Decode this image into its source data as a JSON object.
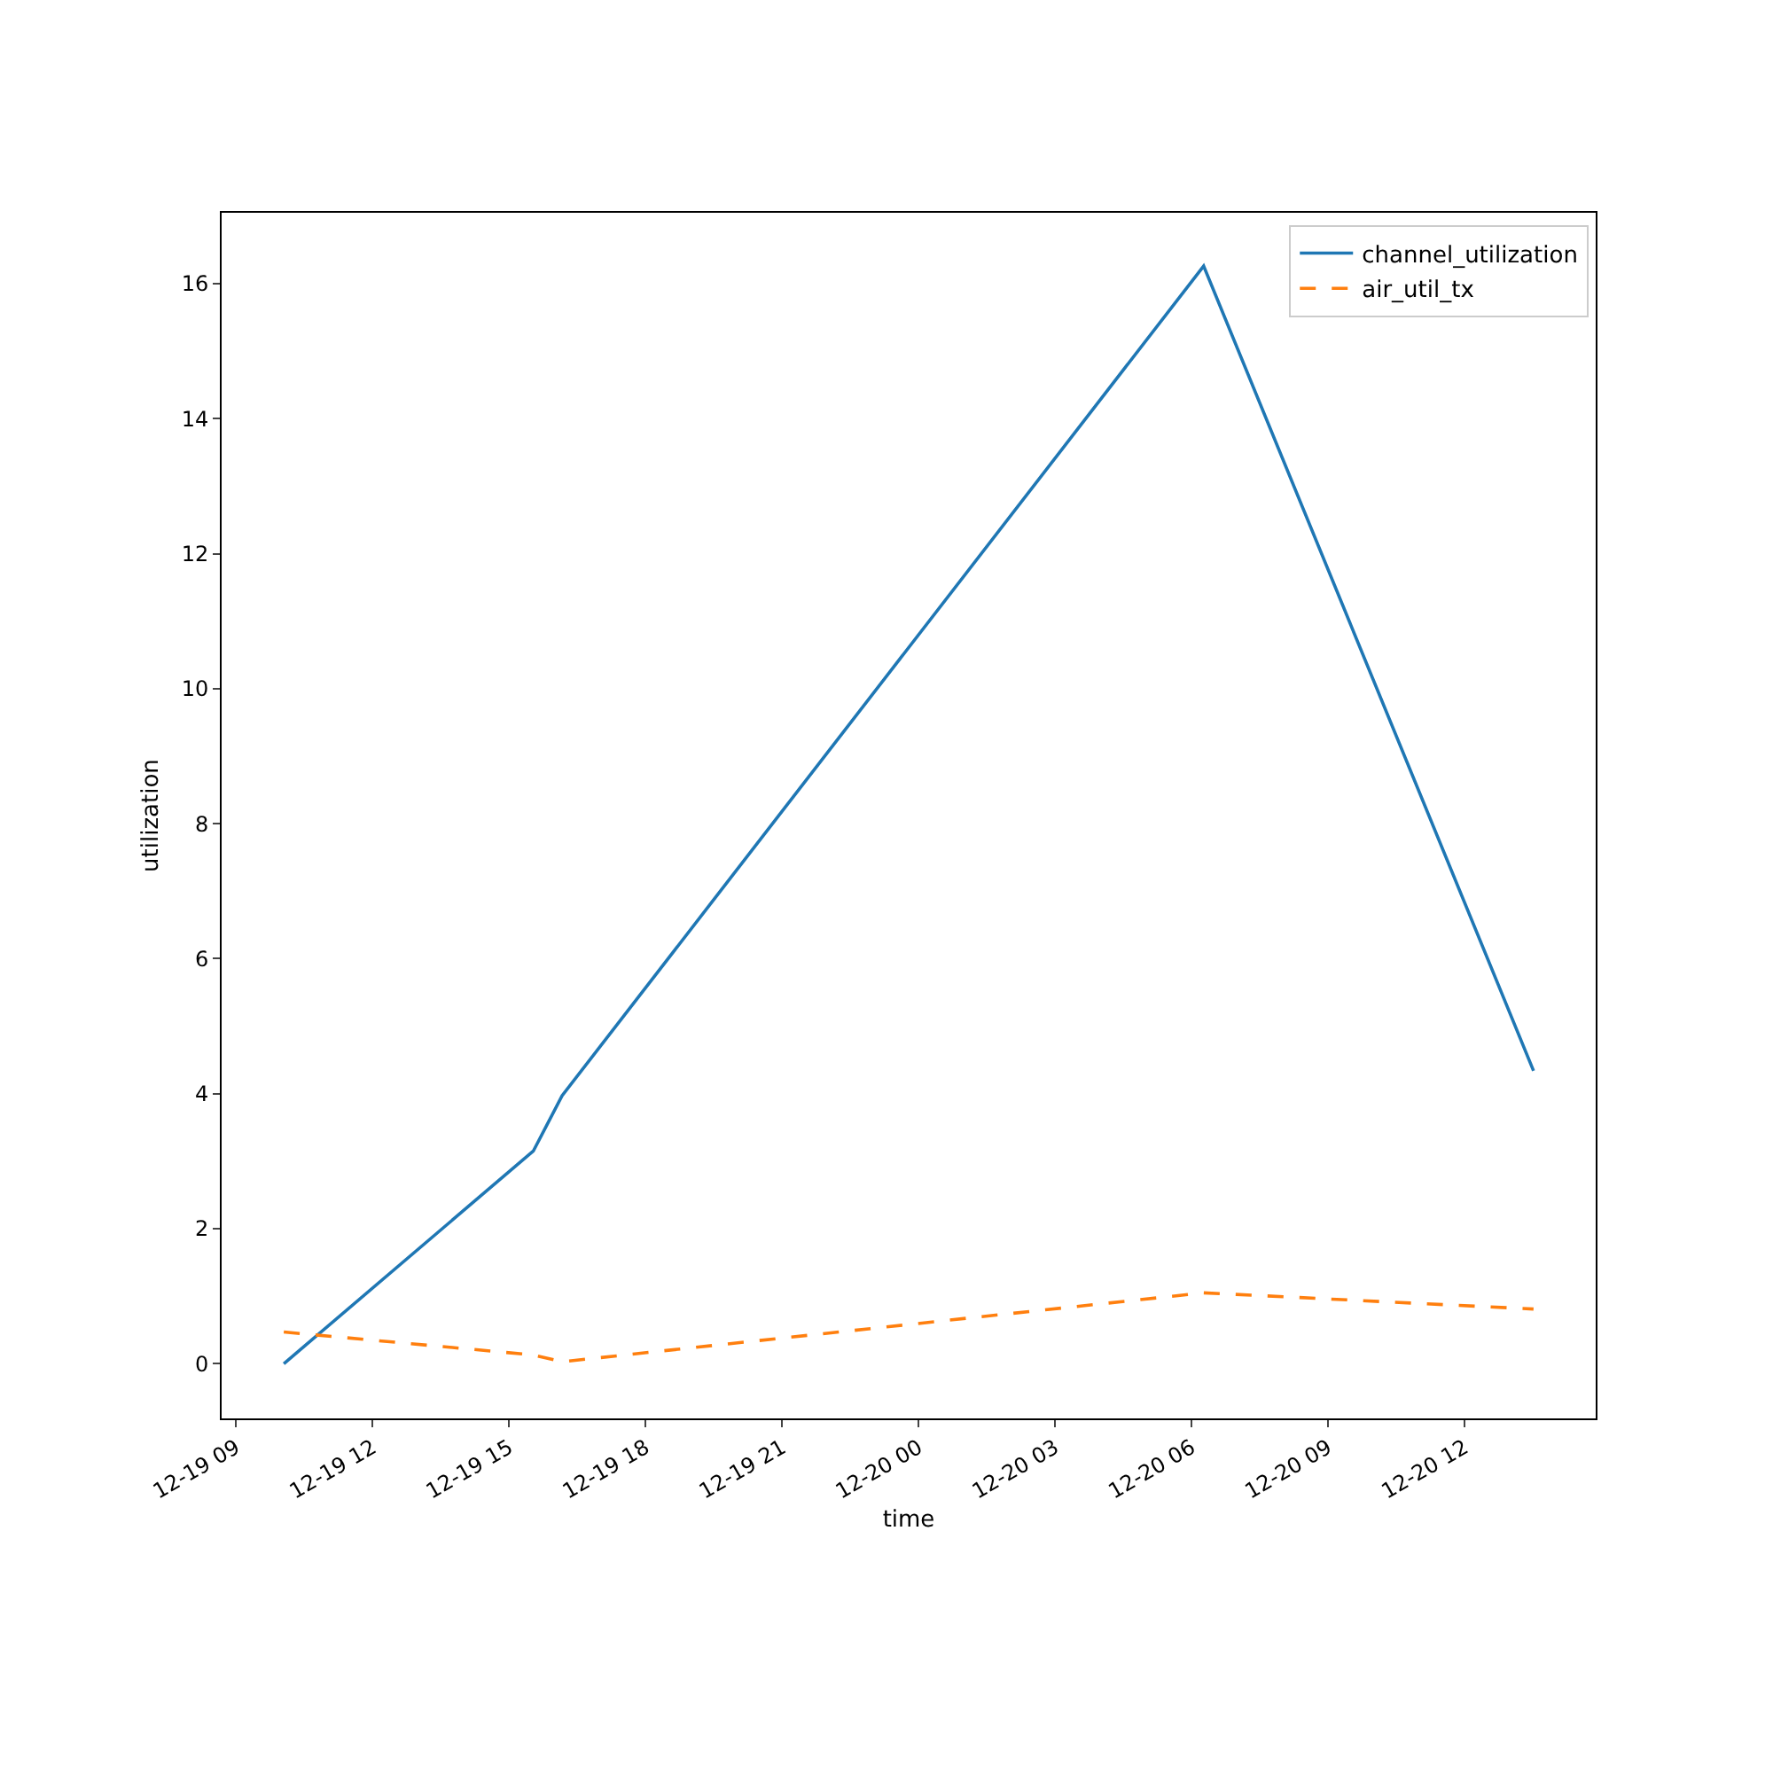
{
  "chart_data": {
    "type": "line",
    "xlabel": "time",
    "ylabel": "utilization",
    "x": [
      "--12-19T10:03",
      "--12-19T15:32",
      "--12-19T16:10",
      "--12-20T06:16",
      "--12-20T13:31"
    ],
    "series": [
      {
        "name": "channel_utilization",
        "color": "#1f77b4",
        "line_style": "solid",
        "values": [
          0,
          3.15,
          3.97,
          16.26,
          4.34
        ]
      },
      {
        "name": "air_util_tx",
        "color": "#ff7f0e",
        "line_style": "dashed",
        "values": [
          0.47,
          0.13,
          0.03,
          1.05,
          0.81
        ]
      }
    ],
    "xlim": [
      "--12-19T08:41",
      "--12-20T14:53"
    ],
    "xticks": [
      {
        "value": "--12-19T09:00",
        "label": "12-19 09"
      },
      {
        "value": "--12-19T12:00",
        "label": "12-19 12"
      },
      {
        "value": "--12-19T15:00",
        "label": "12-19 15"
      },
      {
        "value": "--12-19T18:00",
        "label": "12-19 18"
      },
      {
        "value": "--12-19T21:00",
        "label": "12-19 21"
      },
      {
        "value": "--12-20T00:00",
        "label": "12-20 00"
      },
      {
        "value": "--12-20T03:00",
        "label": "12-20 03"
      },
      {
        "value": "--12-20T06:00",
        "label": "12-20 06"
      },
      {
        "value": "--12-20T09:00",
        "label": "12-20 09"
      },
      {
        "value": "--12-20T12:00",
        "label": "12-20 12"
      }
    ],
    "ylim": [
      -0.81,
      17.05
    ],
    "yticks": [
      0,
      2,
      4,
      6,
      8,
      10,
      12,
      14,
      16
    ],
    "grid": false,
    "legend": "top right"
  }
}
